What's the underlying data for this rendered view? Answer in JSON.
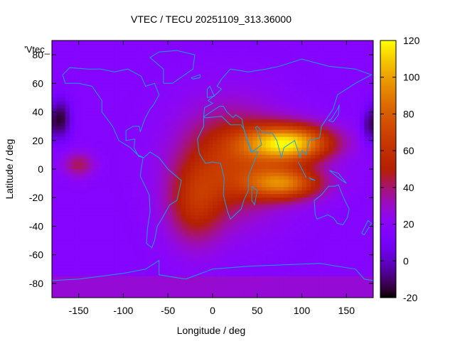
{
  "chart_data": {
    "type": "heatmap",
    "title": "VTEC / TECU 20251109_313.36000",
    "xlabel": "Longitude / deg",
    "ylabel": "Latitude / deg",
    "key_label": "'Vtec_",
    "xlim": [
      -180,
      180
    ],
    "ylim": [
      -90,
      90
    ],
    "x_ticks": [
      -150,
      -100,
      -50,
      0,
      50,
      100,
      150
    ],
    "y_ticks": [
      -80,
      -60,
      -40,
      -20,
      0,
      20,
      40,
      60,
      80
    ],
    "colorbar": {
      "range": [
        -20,
        120
      ],
      "ticks": [
        -20,
        0,
        20,
        40,
        60,
        80,
        100,
        120
      ],
      "palette": "gnuplot default (black-blue-purple-red-orange-yellow)"
    },
    "field": {
      "description": "Vertical total electron content map (TECU), approximated",
      "background_tecu": 18,
      "features": [
        {
          "name": "equatorial-anomaly-north",
          "lon": 85,
          "lat": 18,
          "peak_tecu": 110
        },
        {
          "name": "equatorial-anomaly-south",
          "lon": 80,
          "lat": -10,
          "peak_tecu": 90
        },
        {
          "name": "africa-bulk",
          "lon": 20,
          "lat": 5,
          "peak_tecu": 60
        },
        {
          "name": "south-atlantic",
          "lon": -20,
          "lat": -25,
          "peak_tecu": 50
        },
        {
          "name": "east-pacific-patch",
          "lon": -150,
          "lat": 3,
          "peak_tecu": 42
        },
        {
          "name": "polar-low-alaska",
          "lon": -170,
          "lat": 35,
          "peak_tecu": -15
        },
        {
          "name": "polar-low-east",
          "lon": 175,
          "lat": 30,
          "peak_tecu": -10
        }
      ]
    }
  }
}
